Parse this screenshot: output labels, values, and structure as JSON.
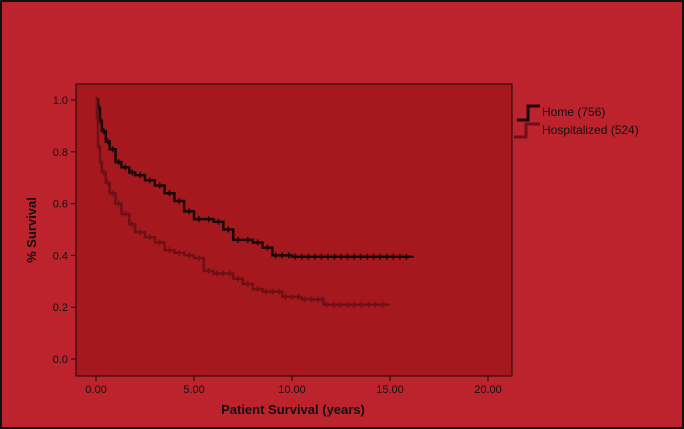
{
  "chart_data": {
    "type": "line",
    "subtype": "kaplan-meier survival curve",
    "title": "",
    "xlabel": "Patient Survival (years)",
    "ylabel": "% Survival",
    "xlim": [
      0,
      20
    ],
    "ylim": [
      0,
      1.0
    ],
    "x_ticks": [
      0,
      5,
      10,
      15,
      20
    ],
    "x_tick_labels": [
      "0.00",
      "5.00",
      "10.00",
      "15.00",
      "20.00"
    ],
    "y_ticks": [
      0,
      0.2,
      0.4,
      0.6,
      0.8,
      1.0
    ],
    "y_tick_labels": [
      "0.0",
      "0.2",
      "0.4",
      "0.6",
      "0.8",
      "1.0"
    ],
    "grid": false,
    "legend_position": "outside-right-top",
    "series": [
      {
        "name": "Home (756)",
        "color": "#1a0808",
        "points": [
          [
            0,
            1.0
          ],
          [
            0.1,
            0.97
          ],
          [
            0.2,
            0.92
          ],
          [
            0.3,
            0.88
          ],
          [
            0.5,
            0.84
          ],
          [
            0.7,
            0.81
          ],
          [
            1.0,
            0.76
          ],
          [
            1.3,
            0.74
          ],
          [
            1.7,
            0.72
          ],
          [
            2.0,
            0.71
          ],
          [
            2.5,
            0.69
          ],
          [
            3.0,
            0.67
          ],
          [
            3.5,
            0.64
          ],
          [
            4.0,
            0.61
          ],
          [
            4.5,
            0.57
          ],
          [
            5.0,
            0.54
          ],
          [
            5.5,
            0.54
          ],
          [
            6.0,
            0.53
          ],
          [
            6.5,
            0.5
          ],
          [
            7.0,
            0.46
          ],
          [
            7.5,
            0.46
          ],
          [
            8.0,
            0.45
          ],
          [
            8.5,
            0.43
          ],
          [
            9.0,
            0.4
          ],
          [
            10.0,
            0.395
          ],
          [
            12.0,
            0.395
          ],
          [
            14.0,
            0.395
          ],
          [
            16.0,
            0.395
          ]
        ]
      },
      {
        "name": "Hospitalized (524)",
        "color": "#6e1016",
        "points": [
          [
            0,
            1.0
          ],
          [
            0.05,
            0.93
          ],
          [
            0.1,
            0.82
          ],
          [
            0.2,
            0.76
          ],
          [
            0.3,
            0.72
          ],
          [
            0.5,
            0.68
          ],
          [
            0.7,
            0.64
          ],
          [
            1.0,
            0.6
          ],
          [
            1.3,
            0.56
          ],
          [
            1.7,
            0.52
          ],
          [
            2.0,
            0.49
          ],
          [
            2.5,
            0.47
          ],
          [
            3.0,
            0.45
          ],
          [
            3.5,
            0.42
          ],
          [
            4.0,
            0.41
          ],
          [
            4.5,
            0.4
          ],
          [
            5.0,
            0.39
          ],
          [
            5.5,
            0.34
          ],
          [
            6.0,
            0.33
          ],
          [
            7.0,
            0.31
          ],
          [
            7.5,
            0.29
          ],
          [
            8.0,
            0.27
          ],
          [
            8.5,
            0.26
          ],
          [
            9.5,
            0.24
          ],
          [
            10.5,
            0.23
          ],
          [
            11.5,
            0.23
          ],
          [
            11.6,
            0.21
          ],
          [
            13.0,
            0.21
          ],
          [
            14.8,
            0.21
          ]
        ]
      }
    ]
  }
}
